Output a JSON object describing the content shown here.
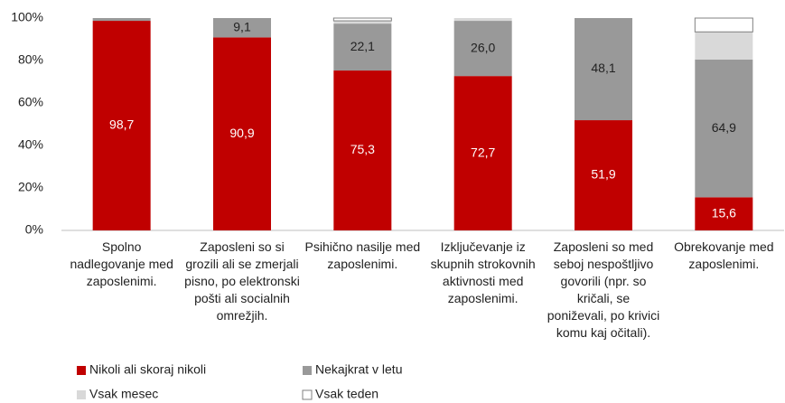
{
  "chart_data": {
    "type": "stacked_bar",
    "categories": [
      "Spolno nadlegovanje med zaposlenimi.",
      "Zaposleni so si grozili ali se zmerjali pisno, po elektronski pošti ali socialnih omrežjih.",
      "Psihično nasilje med zaposlenimi.",
      "Izključevanje iz skupnih strokovnih aktivnosti med zaposlenimi.",
      "Zaposleni so med seboj nespoštljivo govorili (npr. so kričali, se poniževali, po krivici komu kaj očitali).",
      "Obrekovanje med zaposlenimi."
    ],
    "series": [
      {
        "name": "Nikoli ali skoraj nikoli",
        "color": "#c00000",
        "values": [
          98.7,
          90.9,
          75.3,
          72.7,
          51.9,
          15.6
        ],
        "value_labels": [
          "98,7",
          "90,9",
          "75,3",
          "72,7",
          "51,9",
          "15,6"
        ]
      },
      {
        "name": "Nekajkrat v letu",
        "color": "#999999",
        "values": [
          1.3,
          9.1,
          22.1,
          26.0,
          48.1,
          64.9
        ],
        "value_labels": [
          null,
          "9,1",
          "22,1",
          "26,0",
          "48,1",
          "64,9"
        ]
      },
      {
        "name": "Vsak mesec",
        "color": "#d9d9d9",
        "values": [
          0,
          0,
          1.3,
          1.3,
          0,
          13.0
        ]
      },
      {
        "name": "Vsak teden",
        "color": "#ffffff",
        "values": [
          0,
          0,
          1.3,
          0,
          0,
          6.5
        ]
      }
    ],
    "ylim": [
      0,
      100
    ],
    "yticks": [
      {
        "value": 0,
        "label": "0%"
      },
      {
        "value": 20,
        "label": "20%"
      },
      {
        "value": 40,
        "label": "40%"
      },
      {
        "value": 60,
        "label": "60%"
      },
      {
        "value": 80,
        "label": "80%"
      },
      {
        "value": 100,
        "label": "100%"
      }
    ],
    "legend": "bottom-left"
  }
}
